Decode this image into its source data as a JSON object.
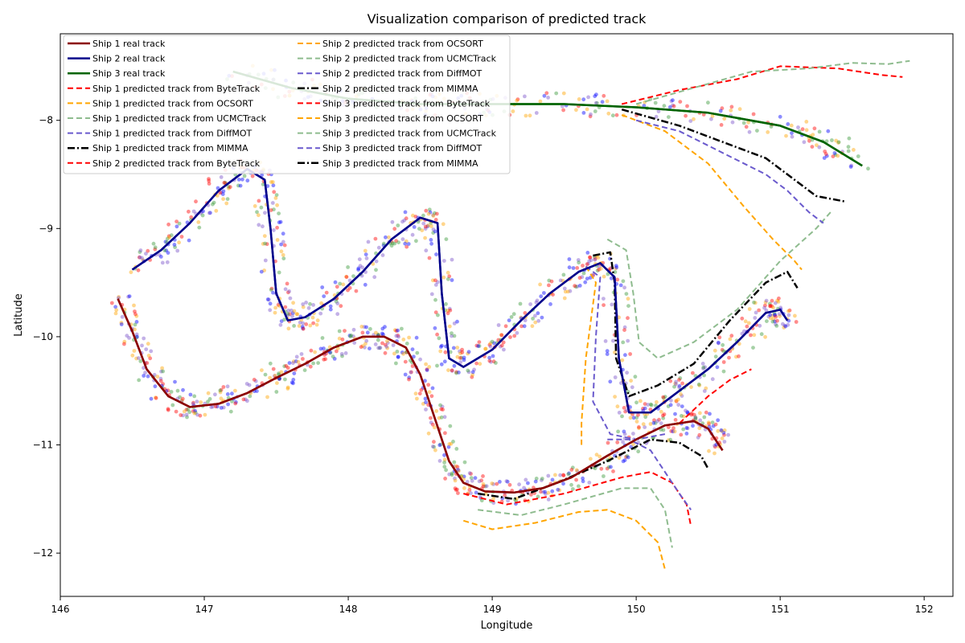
{
  "chart_data": {
    "type": "line",
    "title": "Visualization comparison of predicted track",
    "xlabel": "Longitude",
    "ylabel": "Latitude",
    "xlim": [
      146,
      152.2
    ],
    "ylim": [
      -12.4,
      -7.2
    ],
    "xticks": [
      146,
      147,
      148,
      149,
      150,
      151,
      152
    ],
    "yticks": [
      -12,
      -11,
      -10,
      -9,
      -8
    ],
    "grid": false,
    "legend_position": "top-left",
    "scatter_colors": [
      "#ff0000",
      "#ffa500",
      "#0000ff",
      "#3a9a3a",
      "#7b52c9"
    ],
    "series": [
      {
        "name": "Ship 1 real track",
        "color": "#8b0000",
        "style": "solid",
        "width": 2.5,
        "points": [
          [
            146.4,
            -9.65
          ],
          [
            146.5,
            -9.95
          ],
          [
            146.6,
            -10.3
          ],
          [
            146.75,
            -10.55
          ],
          [
            146.9,
            -10.65
          ],
          [
            147.1,
            -10.62
          ],
          [
            147.3,
            -10.52
          ],
          [
            147.5,
            -10.38
          ],
          [
            147.7,
            -10.25
          ],
          [
            147.9,
            -10.1
          ],
          [
            148.1,
            -10.0
          ],
          [
            148.25,
            -10.0
          ],
          [
            148.4,
            -10.1
          ],
          [
            148.5,
            -10.35
          ],
          [
            148.6,
            -10.75
          ],
          [
            148.7,
            -11.15
          ],
          [
            148.8,
            -11.35
          ],
          [
            148.95,
            -11.43
          ],
          [
            149.15,
            -11.44
          ],
          [
            149.35,
            -11.4
          ],
          [
            149.55,
            -11.3
          ],
          [
            149.8,
            -11.1
          ],
          [
            150.0,
            -10.95
          ],
          [
            150.2,
            -10.82
          ],
          [
            150.4,
            -10.78
          ],
          [
            150.5,
            -10.85
          ],
          [
            150.6,
            -11.05
          ]
        ]
      },
      {
        "name": "Ship 2 real track",
        "color": "#00008b",
        "style": "solid",
        "width": 2.5,
        "points": [
          [
            146.5,
            -9.38
          ],
          [
            146.7,
            -9.2
          ],
          [
            146.9,
            -8.95
          ],
          [
            147.1,
            -8.65
          ],
          [
            147.3,
            -8.45
          ],
          [
            147.42,
            -8.55
          ],
          [
            147.46,
            -9.0
          ],
          [
            147.5,
            -9.6
          ],
          [
            147.58,
            -9.85
          ],
          [
            147.7,
            -9.82
          ],
          [
            147.9,
            -9.65
          ],
          [
            148.1,
            -9.4
          ],
          [
            148.3,
            -9.1
          ],
          [
            148.5,
            -8.9
          ],
          [
            148.62,
            -8.95
          ],
          [
            148.65,
            -9.6
          ],
          [
            148.7,
            -10.2
          ],
          [
            148.8,
            -10.28
          ],
          [
            149.0,
            -10.12
          ],
          [
            149.2,
            -9.85
          ],
          [
            149.4,
            -9.6
          ],
          [
            149.6,
            -9.4
          ],
          [
            149.75,
            -9.32
          ],
          [
            149.85,
            -9.45
          ],
          [
            149.88,
            -10.2
          ],
          [
            149.95,
            -10.7
          ],
          [
            150.1,
            -10.7
          ],
          [
            150.3,
            -10.5
          ],
          [
            150.5,
            -10.3
          ],
          [
            150.7,
            -10.05
          ],
          [
            150.9,
            -9.78
          ],
          [
            151.0,
            -9.75
          ],
          [
            151.05,
            -9.85
          ]
        ]
      },
      {
        "name": "Ship 3 real track",
        "color": "#006400",
        "style": "solid",
        "width": 2.5,
        "points": [
          [
            147.2,
            -7.55
          ],
          [
            147.6,
            -7.7
          ],
          [
            148.0,
            -7.8
          ],
          [
            148.5,
            -7.85
          ],
          [
            149.0,
            -7.85
          ],
          [
            149.5,
            -7.85
          ],
          [
            150.0,
            -7.88
          ],
          [
            150.5,
            -7.93
          ],
          [
            151.0,
            -8.05
          ],
          [
            151.3,
            -8.2
          ],
          [
            151.57,
            -8.42
          ]
        ]
      },
      {
        "name": "Ship 1 predicted track from ByteTrack",
        "color": "#ff0000",
        "style": "dashed",
        "width": 2,
        "points": [
          [
            148.8,
            -11.45
          ],
          [
            149.1,
            -11.55
          ],
          [
            149.5,
            -11.45
          ],
          [
            149.9,
            -11.3
          ],
          [
            150.1,
            -11.25
          ],
          [
            150.25,
            -11.35
          ],
          [
            150.35,
            -11.55
          ],
          [
            150.38,
            -11.75
          ]
        ]
      },
      {
        "name": "Ship 1 predicted track from OCSORT",
        "color": "#ffa500",
        "style": "dashed",
        "width": 2,
        "points": [
          [
            148.8,
            -11.7
          ],
          [
            149.0,
            -11.78
          ],
          [
            149.3,
            -11.72
          ],
          [
            149.6,
            -11.62
          ],
          [
            149.8,
            -11.6
          ],
          [
            150.0,
            -11.7
          ],
          [
            150.15,
            -11.9
          ],
          [
            150.2,
            -12.15
          ]
        ]
      },
      {
        "name": "Ship 1 predicted track from UCMCTrack",
        "color": "#8fbc8f",
        "style": "dashed",
        "width": 2,
        "points": [
          [
            148.9,
            -11.6
          ],
          [
            149.2,
            -11.65
          ],
          [
            149.5,
            -11.55
          ],
          [
            149.9,
            -11.4
          ],
          [
            150.1,
            -11.4
          ],
          [
            150.2,
            -11.6
          ],
          [
            150.25,
            -11.95
          ]
        ]
      },
      {
        "name": "Ship 1 predicted track from DiffMOT",
        "color": "#6a5acd",
        "style": "dashed",
        "width": 2,
        "points": [
          [
            149.8,
            -10.95
          ],
          [
            149.95,
            -10.95
          ],
          [
            150.1,
            -11.05
          ],
          [
            150.2,
            -11.25
          ],
          [
            150.3,
            -11.45
          ],
          [
            150.38,
            -11.6
          ]
        ]
      },
      {
        "name": "Ship 1 predicted track from MIMMA",
        "color": "#000000",
        "style": "dashdot",
        "width": 2.5,
        "points": [
          [
            148.9,
            -11.45
          ],
          [
            149.15,
            -11.5
          ],
          [
            149.45,
            -11.35
          ],
          [
            149.8,
            -11.15
          ],
          [
            150.1,
            -10.95
          ],
          [
            150.3,
            -10.98
          ],
          [
            150.45,
            -11.1
          ],
          [
            150.5,
            -11.22
          ]
        ]
      },
      {
        "name": "Ship 2 predicted track from ByteTrack",
        "color": "#ff0000",
        "style": "dashed",
        "width": 2,
        "points": [
          [
            150.3,
            -10.8
          ],
          [
            150.5,
            -10.55
          ],
          [
            150.65,
            -10.4
          ],
          [
            150.8,
            -10.3
          ]
        ]
      },
      {
        "name": "Ship 2 predicted track from OCSORT",
        "color": "#ffa500",
        "style": "dashed",
        "width": 2,
        "points": [
          [
            149.65,
            -9.35
          ],
          [
            149.72,
            -9.5
          ],
          [
            149.65,
            -10.2
          ],
          [
            149.62,
            -10.8
          ],
          [
            149.62,
            -11.0
          ]
        ]
      },
      {
        "name": "Ship 2 predicted track from UCMCTrack",
        "color": "#8fbc8f",
        "style": "dashed",
        "width": 2,
        "points": [
          [
            149.8,
            -9.1
          ],
          [
            149.93,
            -9.2
          ],
          [
            149.98,
            -9.6
          ],
          [
            150.02,
            -10.05
          ],
          [
            150.15,
            -10.2
          ],
          [
            150.4,
            -10.05
          ],
          [
            150.7,
            -9.75
          ],
          [
            151.0,
            -9.3
          ],
          [
            151.25,
            -9.0
          ],
          [
            151.35,
            -8.85
          ]
        ]
      },
      {
        "name": "Ship 2 predicted track from DiffMOT",
        "color": "#6a5acd",
        "style": "dashed",
        "width": 2,
        "points": [
          [
            149.65,
            -9.35
          ],
          [
            149.75,
            -9.45
          ],
          [
            149.72,
            -10.0
          ],
          [
            149.7,
            -10.6
          ],
          [
            149.82,
            -10.9
          ],
          [
            150.0,
            -10.95
          ],
          [
            150.2,
            -10.9
          ]
        ]
      },
      {
        "name": "Ship 2 predicted track from MIMMA",
        "color": "#000000",
        "style": "dashdot",
        "width": 2.5,
        "points": [
          [
            149.7,
            -9.25
          ],
          [
            149.82,
            -9.22
          ],
          [
            149.85,
            -9.5
          ],
          [
            149.86,
            -10.2
          ],
          [
            149.95,
            -10.55
          ],
          [
            150.15,
            -10.45
          ],
          [
            150.4,
            -10.25
          ],
          [
            150.65,
            -9.85
          ],
          [
            150.9,
            -9.5
          ],
          [
            151.05,
            -9.4
          ],
          [
            151.12,
            -9.55
          ]
        ]
      },
      {
        "name": "Ship 3 predicted track from ByteTrack",
        "color": "#ff0000",
        "style": "dashed",
        "width": 2,
        "points": [
          [
            149.9,
            -7.85
          ],
          [
            150.3,
            -7.72
          ],
          [
            150.7,
            -7.62
          ],
          [
            151.0,
            -7.5
          ],
          [
            151.4,
            -7.52
          ],
          [
            151.7,
            -7.58
          ],
          [
            151.85,
            -7.6
          ]
        ]
      },
      {
        "name": "Ship 3 predicted track from OCSORT",
        "color": "#ffa500",
        "style": "dashed",
        "width": 2,
        "points": [
          [
            149.9,
            -7.95
          ],
          [
            150.2,
            -8.1
          ],
          [
            150.5,
            -8.4
          ],
          [
            150.75,
            -8.8
          ],
          [
            150.95,
            -9.1
          ],
          [
            151.1,
            -9.3
          ],
          [
            151.15,
            -9.38
          ]
        ]
      },
      {
        "name": "Ship 3 predicted track from UCMCTrack",
        "color": "#8fbc8f",
        "style": "dashed",
        "width": 2,
        "points": [
          [
            150.0,
            -7.85
          ],
          [
            150.4,
            -7.7
          ],
          [
            150.8,
            -7.55
          ],
          [
            151.2,
            -7.52
          ],
          [
            151.5,
            -7.47
          ],
          [
            151.75,
            -7.48
          ],
          [
            151.9,
            -7.45
          ]
        ]
      },
      {
        "name": "Ship 3 predicted track from DiffMOT",
        "color": "#6a5acd",
        "style": "dashed",
        "width": 2,
        "points": [
          [
            150.0,
            -8.0
          ],
          [
            150.3,
            -8.1
          ],
          [
            150.6,
            -8.3
          ],
          [
            150.9,
            -8.5
          ],
          [
            151.05,
            -8.65
          ],
          [
            151.2,
            -8.85
          ],
          [
            151.3,
            -8.95
          ]
        ]
      },
      {
        "name": "Ship 3 predicted track from MIMMA",
        "color": "#000000",
        "style": "dashdot",
        "width": 2.5,
        "points": [
          [
            149.9,
            -7.9
          ],
          [
            150.3,
            -8.05
          ],
          [
            150.6,
            -8.2
          ],
          [
            150.9,
            -8.35
          ],
          [
            151.1,
            -8.55
          ],
          [
            151.25,
            -8.7
          ],
          [
            151.45,
            -8.75
          ]
        ]
      }
    ]
  }
}
